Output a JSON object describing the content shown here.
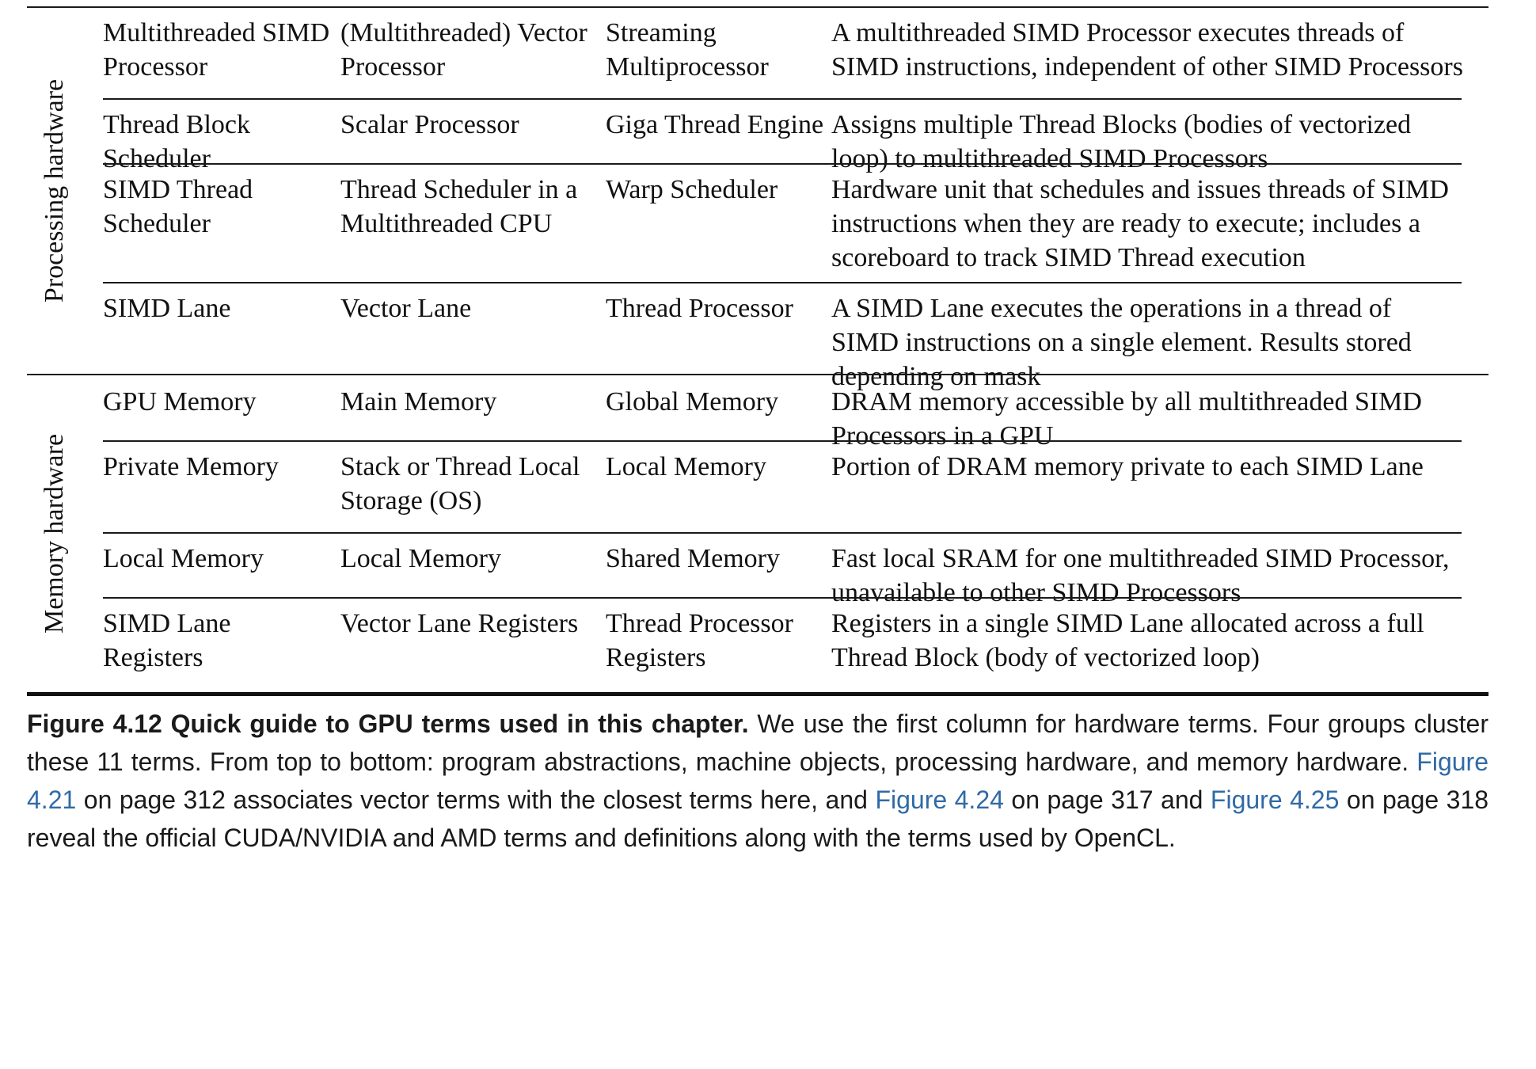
{
  "groups": [
    {
      "label": "Processing hardware",
      "rows": [
        {
          "c1": "Multithreaded SIMD Processor",
          "c2": "(Multithreaded) Vector Processor",
          "c3": "Streaming Multiprocessor",
          "c4": "A multithreaded SIMD Processor executes threads of SIMD instructions, independent of other SIMD Processors"
        },
        {
          "c1": "Thread Block Scheduler",
          "c2": "Scalar Processor",
          "c3": "Giga Thread Engine",
          "c4": "Assigns multiple Thread Blocks (bodies of vectorized loop) to multithreaded SIMD Processors"
        },
        {
          "c1": "SIMD Thread Scheduler",
          "c2": "Thread Scheduler in a Multithreaded CPU",
          "c3": "Warp Scheduler",
          "c4": "Hardware unit that schedules and issues threads of SIMD instructions when they are ready to execute; includes a scoreboard to track SIMD Thread execution"
        },
        {
          "c1": "SIMD Lane",
          "c2": "Vector Lane",
          "c3": "Thread Processor",
          "c4": "A SIMD Lane executes the operations in a thread of SIMD instructions on a single element. Results stored depending on mask"
        }
      ]
    },
    {
      "label": "Memory hardware",
      "rows": [
        {
          "c1": "GPU Memory",
          "c2": "Main Memory",
          "c3": "Global Memory",
          "c4": "DRAM memory accessible by all multithreaded SIMD Processors in a GPU"
        },
        {
          "c1": "Private Memory",
          "c2": "Stack or Thread Local Storage (OS)",
          "c3": "Local Memory",
          "c4": "Portion of DRAM memory private to each SIMD Lane"
        },
        {
          "c1": "Local Memory",
          "c2": "Local Memory",
          "c3": "Shared Memory",
          "c4": "Fast local SRAM for one multithreaded SIMD Processor, unavailable to other SIMD Processors"
        },
        {
          "c1": "SIMD Lane Registers",
          "c2": "Vector Lane Registers",
          "c3": "Thread Processor Registers",
          "c4": "Registers in a single SIMD Lane allocated across a full Thread Block (body of vectorized loop)"
        }
      ]
    }
  ],
  "caption": {
    "label": "Figure 4.12 Quick guide to GPU terms used in this chapter.",
    "text1": " We use the first column for hardware terms. Four groups cluster these 11 terms. From top to bottom: program abstractions, machine objects, processing hardware, and memory hardware. ",
    "link1": "Figure 4.21",
    "text2": " on page 312 associates vector terms with the closest terms here, and ",
    "link2": "Figure 4.24",
    "text3": " on page 317 and ",
    "link3": "Figure 4.25",
    "text4": " on page 318 reveal the official CUDA/NVIDIA and AMD terms and definitions along with the terms used by OpenCL.",
    "link_color": "#2f6aa6"
  }
}
